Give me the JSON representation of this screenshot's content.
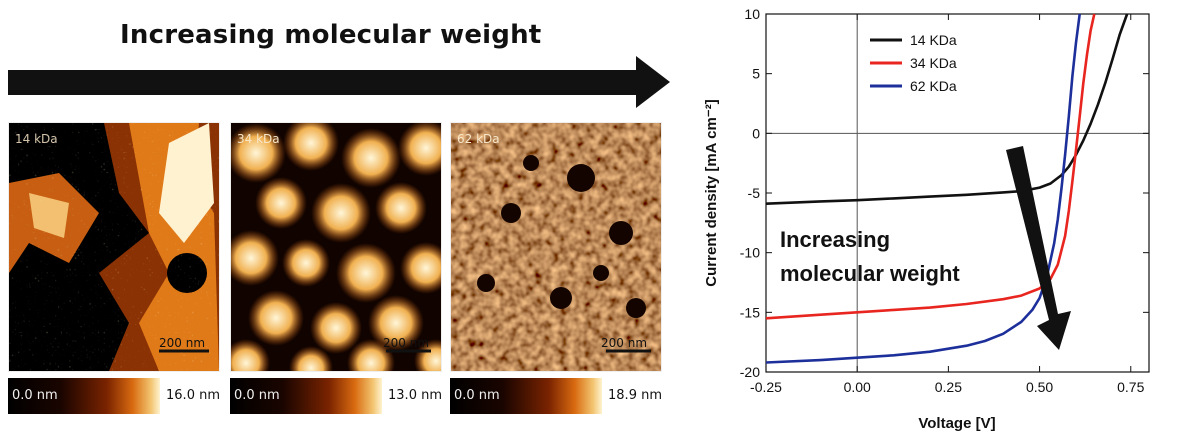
{
  "figure_heading": "Increasing molecular weight",
  "afm_panels": [
    {
      "label": "14 kDa",
      "scalebar": "200 nm",
      "cbar_min": "0.0 nm",
      "cbar_max": "16.0 nm"
    },
    {
      "label": "34 kDa",
      "scalebar": "200 nm",
      "cbar_min": "0.0 nm",
      "cbar_max": "13.0 nm"
    },
    {
      "label": "62 kDa",
      "scalebar": "200 nm",
      "cbar_min": "0.0 nm",
      "cbar_max": "18.9 nm"
    }
  ],
  "colors": {
    "series_14": "#111111",
    "series_34": "#e8251f",
    "series_62": "#1d2f9a",
    "arrow": "#111111"
  },
  "chart_data": {
    "type": "line",
    "title": "",
    "xlabel": "Voltage [V]",
    "ylabel": "Current density [mA cm⁻²]",
    "xlim": [
      -0.25,
      0.8
    ],
    "ylim": [
      -20,
      10
    ],
    "xticks": [
      "-0.25",
      "0.00",
      "0.25",
      "0.50",
      "0.75"
    ],
    "xtick_values": [
      -0.25,
      0.0,
      0.25,
      0.5,
      0.75
    ],
    "yticks": [
      "-20",
      "-15",
      "-10",
      "-5",
      "0",
      "5",
      "10"
    ],
    "ytick_values": [
      -20,
      -15,
      -10,
      -5,
      0,
      5,
      10
    ],
    "grid": false,
    "legend_position": "top-left",
    "annotation": "Increasing molecular weight",
    "series": [
      {
        "name": "14 KDa",
        "color": "#111111",
        "x": [
          -0.25,
          -0.1,
          0.0,
          0.1,
          0.2,
          0.3,
          0.4,
          0.45,
          0.5,
          0.53,
          0.56,
          0.58,
          0.6,
          0.62,
          0.64,
          0.66,
          0.68,
          0.7,
          0.72,
          0.74
        ],
        "y": [
          -5.9,
          -5.7,
          -5.6,
          -5.45,
          -5.3,
          -5.15,
          -4.95,
          -4.85,
          -4.55,
          -4.2,
          -3.5,
          -2.8,
          -1.8,
          -0.6,
          0.8,
          2.4,
          4.2,
          6.2,
          8.3,
          10.0
        ]
      },
      {
        "name": "34 KDa",
        "color": "#e8251f",
        "x": [
          -0.25,
          -0.1,
          0.0,
          0.1,
          0.2,
          0.3,
          0.4,
          0.45,
          0.5,
          0.53,
          0.55,
          0.57,
          0.58,
          0.59,
          0.6,
          0.61,
          0.62,
          0.63,
          0.64,
          0.65
        ],
        "y": [
          -15.5,
          -15.2,
          -15.0,
          -14.8,
          -14.6,
          -14.3,
          -13.9,
          -13.6,
          -13.0,
          -12.2,
          -11.0,
          -8.6,
          -6.5,
          -4.0,
          -1.4,
          1.4,
          4.2,
          6.6,
          8.6,
          10.0
        ]
      },
      {
        "name": "62 KDa",
        "color": "#1d2f9a",
        "x": [
          -0.25,
          -0.1,
          0.0,
          0.1,
          0.2,
          0.3,
          0.35,
          0.4,
          0.45,
          0.48,
          0.5,
          0.52,
          0.54,
          0.55,
          0.56,
          0.57,
          0.58,
          0.59,
          0.6,
          0.61
        ],
        "y": [
          -19.2,
          -19.0,
          -18.8,
          -18.6,
          -18.3,
          -17.8,
          -17.4,
          -16.8,
          -15.8,
          -14.8,
          -13.8,
          -12.0,
          -9.2,
          -7.2,
          -4.6,
          -1.8,
          1.4,
          4.8,
          7.6,
          10.0
        ]
      }
    ]
  }
}
